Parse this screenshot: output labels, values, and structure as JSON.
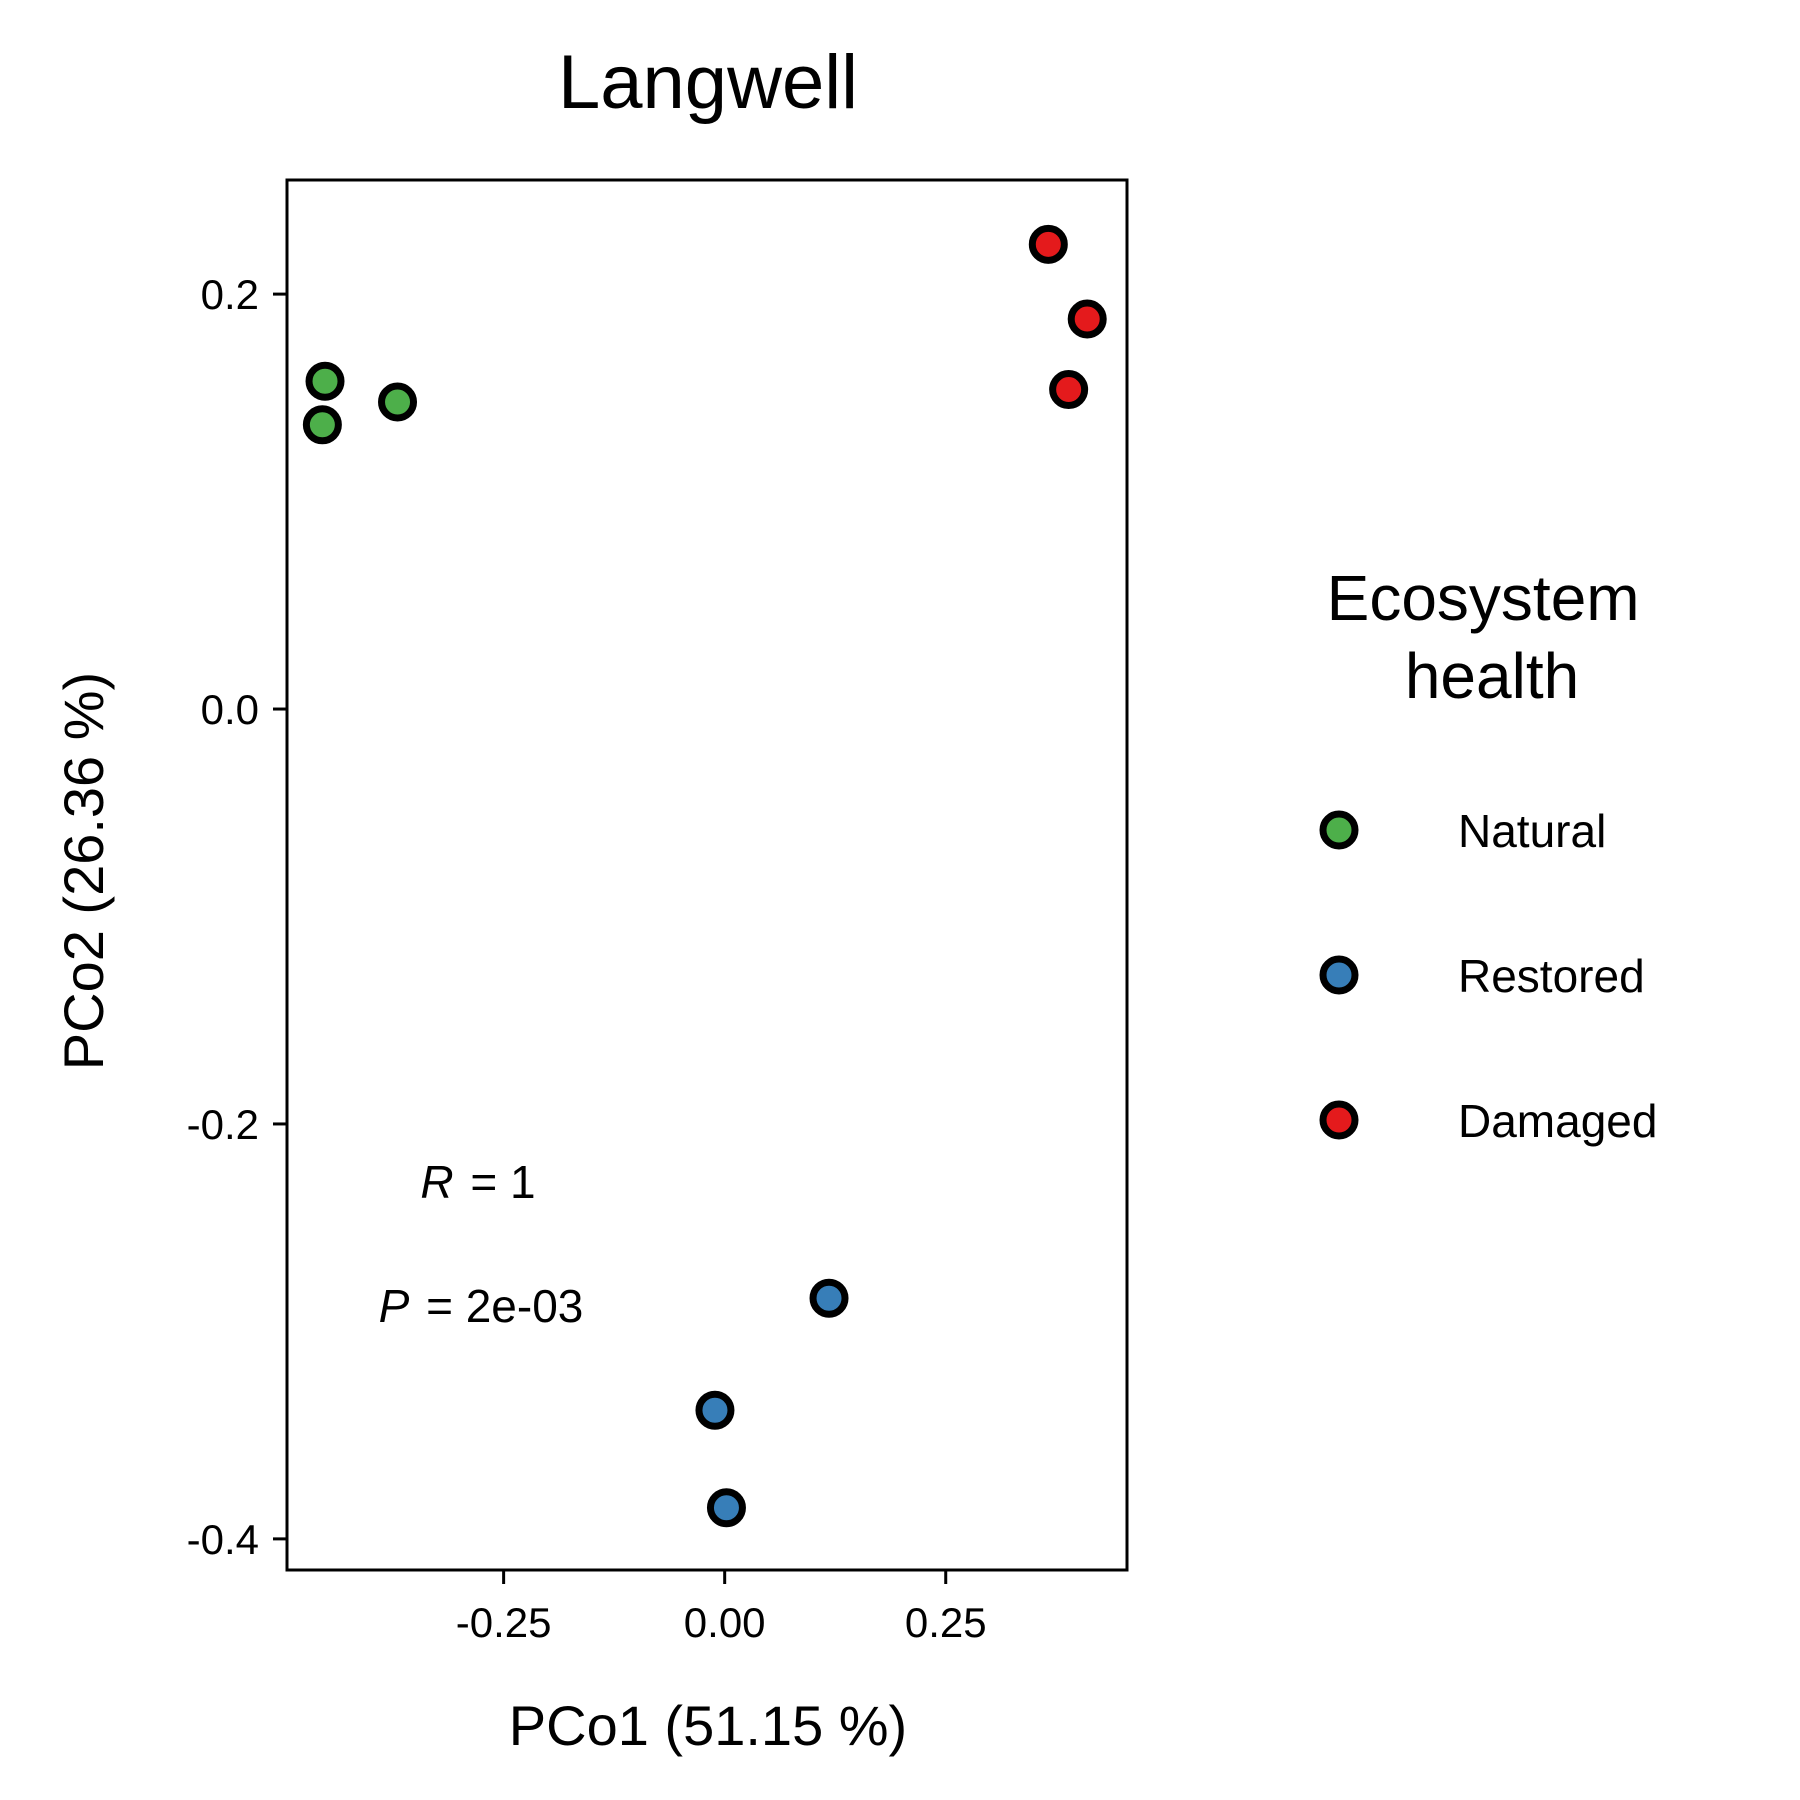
{
  "chart_data": {
    "type": "scatter",
    "title": "Langwell",
    "xlabel": "PCo1 (51.15 %)",
    "ylabel": "PCo2 (26.36 %)",
    "xlim": [
      -0.495,
      0.455
    ],
    "ylim": [
      -0.415,
      0.255
    ],
    "x_ticks": [
      -0.25,
      0.0,
      0.25
    ],
    "x_tick_labels": [
      "-0.25",
      "0.00",
      "0.25"
    ],
    "y_ticks": [
      -0.4,
      -0.2,
      0.0,
      0.2
    ],
    "y_tick_labels": [
      "-0.4",
      "-0.2",
      "0.0",
      "0.2"
    ],
    "grid": false,
    "legend_position": "right",
    "legend_title": [
      "Ecosystem",
      "health"
    ],
    "annotations": {
      "r_symbol": "R",
      "r_value": "= 1",
      "p_symbol": "P",
      "p_value": "= 2e-03"
    },
    "series": [
      {
        "name": "Natural",
        "color": "#4daf4a",
        "points": [
          {
            "x": -0.452,
            "y": 0.158
          },
          {
            "x": -0.455,
            "y": 0.137
          },
          {
            "x": -0.37,
            "y": 0.148
          }
        ]
      },
      {
        "name": "Restored",
        "color": "#377eb8",
        "points": [
          {
            "x": 0.118,
            "y": -0.284
          },
          {
            "x": -0.011,
            "y": -0.338
          },
          {
            "x": 0.002,
            "y": -0.385
          }
        ]
      },
      {
        "name": "Damaged",
        "color": "#e41a1c",
        "points": [
          {
            "x": 0.366,
            "y": 0.224
          },
          {
            "x": 0.41,
            "y": 0.188
          },
          {
            "x": 0.389,
            "y": 0.154
          }
        ]
      }
    ]
  }
}
